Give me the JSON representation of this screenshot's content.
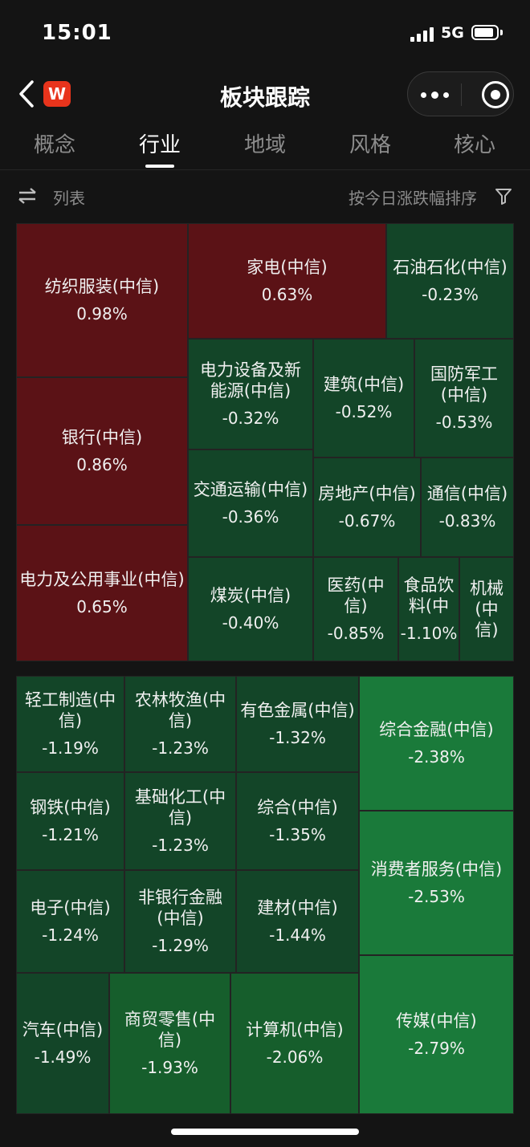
{
  "status_bar": {
    "time": "15:01",
    "network": "5G",
    "battery_level": 0.9
  },
  "nav": {
    "title": "板块跟踪",
    "logo_text": "W"
  },
  "tabs": [
    {
      "label": "概念",
      "active": false
    },
    {
      "label": "行业",
      "active": true
    },
    {
      "label": "地域",
      "active": false
    },
    {
      "label": "风格",
      "active": false
    },
    {
      "label": "核心",
      "active": false
    }
  ],
  "toolbar": {
    "list_label": "列表",
    "sort_label": "按今日涨跌幅排序"
  },
  "colors": {
    "up": "#5b1216",
    "down_light": "#134528",
    "down": "#165e2c",
    "down_strong": "#1a7a3a"
  },
  "treemap_top": [
    {
      "name": "纺织服装(中信)",
      "change": "0.98%"
    },
    {
      "name": "银行(中信)",
      "change": "0.86%"
    },
    {
      "name": "电力及公用事业(中信)",
      "change": "0.65%"
    },
    {
      "name": "家电(中信)",
      "change": "0.63%"
    },
    {
      "name": "石油石化(中信)",
      "change": "-0.23%"
    },
    {
      "name": "电力设备及新能源(中信)",
      "change": "-0.32%"
    },
    {
      "name": "建筑(中信)",
      "change": "-0.52%"
    },
    {
      "name": "国防军工(中信)",
      "change": "-0.53%"
    },
    {
      "name": "交通运输(中信)",
      "change": "-0.36%"
    },
    {
      "name": "房地产(中信)",
      "change": "-0.67%"
    },
    {
      "name": "通信(中信)",
      "change": "-0.83%"
    },
    {
      "name": "煤炭(中信)",
      "change": "-0.40%"
    },
    {
      "name": "医药(中信)",
      "change": "-0.85%"
    },
    {
      "name": "食品饮料(中信)",
      "change": "-1.10%"
    },
    {
      "name": "机械(中信)",
      "change": ""
    }
  ],
  "treemap_bottom": [
    {
      "name": "轻工制造(中信)",
      "change": "-1.19%"
    },
    {
      "name": "农林牧渔(中信)",
      "change": "-1.23%"
    },
    {
      "name": "有色金属(中信)",
      "change": "-1.32%"
    },
    {
      "name": "综合金融(中信)",
      "change": "-2.38%"
    },
    {
      "name": "钢铁(中信)",
      "change": "-1.21%"
    },
    {
      "name": "基础化工(中信)",
      "change": "-1.23%"
    },
    {
      "name": "综合(中信)",
      "change": "-1.35%"
    },
    {
      "name": "消费者服务(中信)",
      "change": "-2.53%"
    },
    {
      "name": "电子(中信)",
      "change": "-1.24%"
    },
    {
      "name": "非银行金融(中信)",
      "change": "-1.29%"
    },
    {
      "name": "建材(中信)",
      "change": "-1.44%"
    },
    {
      "name": "汽车(中信)",
      "change": "-1.49%"
    },
    {
      "name": "商贸零售(中信)",
      "change": "-1.93%"
    },
    {
      "name": "计算机(中信)",
      "change": "-2.06%"
    },
    {
      "name": "传媒(中信)",
      "change": "-2.79%"
    }
  ]
}
